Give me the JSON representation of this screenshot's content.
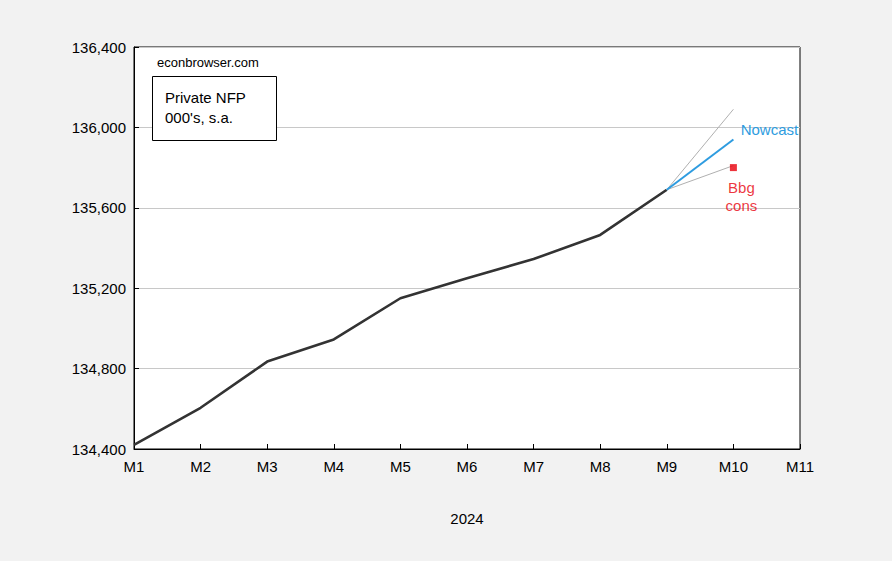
{
  "chart_data": {
    "type": "line",
    "title": "Private NFP\n000's, s.a.",
    "annotations": [
      "econbrowser.com"
    ],
    "xlabel": "2024",
    "categories": [
      "M1",
      "M2",
      "M3",
      "M4",
      "M5",
      "M6",
      "M7",
      "M8",
      "M9",
      "M10",
      "M11"
    ],
    "series": [
      {
        "color": "#333333",
        "line_style": "solid",
        "marker": "none",
        "values": [
          134420,
          134605,
          134835,
          134945,
          135150,
          135250,
          135345,
          135465,
          135690,
          null,
          null
        ]
      },
      {
        "color": "#b0b0b0",
        "line_style": "solid",
        "marker": "none",
        "values": [
          null,
          null,
          null,
          null,
          null,
          null,
          null,
          null,
          135690,
          136090,
          null
        ]
      },
      {
        "color": "#b0b0b0",
        "line_style": "solid",
        "marker": "none",
        "values": [
          null,
          null,
          null,
          null,
          null,
          null,
          null,
          null,
          135690,
          135810,
          null
        ]
      },
      {
        "name": "Nowcast",
        "color": "#2e9ce0",
        "line_style": "solid",
        "marker": "none",
        "values": [
          null,
          null,
          null,
          null,
          null,
          null,
          null,
          null,
          135690,
          135940,
          null
        ]
      },
      {
        "name": "Bbg\ncons",
        "type": "scatter",
        "color": "#e8000b",
        "marker": "square",
        "values": [
          null,
          null,
          null,
          null,
          null,
          null,
          null,
          null,
          null,
          135800,
          null
        ]
      }
    ],
    "ylim": [
      134400,
      136400
    ],
    "yticks": [
      {
        "value": 134400,
        "label": "134,400"
      },
      {
        "value": 134800,
        "label": "134,800"
      },
      {
        "value": 135200,
        "label": "135,200"
      },
      {
        "value": 135600,
        "label": "135,600"
      },
      {
        "value": 136000,
        "label": "136,000"
      },
      {
        "value": 136400,
        "label": "136,400"
      }
    ],
    "grid": true
  }
}
